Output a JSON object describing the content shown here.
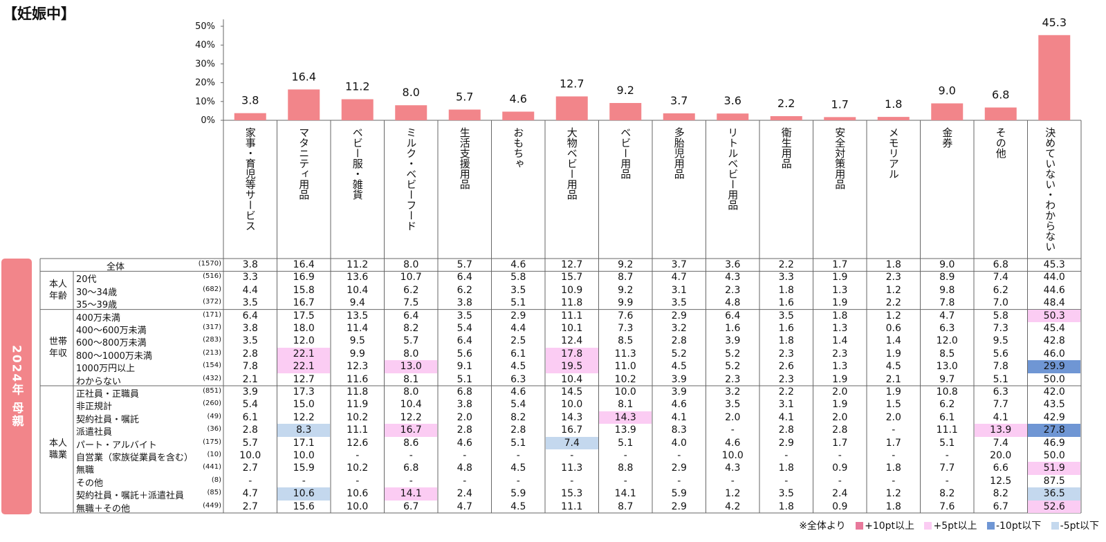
{
  "title": "【妊娠中】",
  "side_label": "2024年 母親",
  "chart_data": {
    "type": "bar",
    "categories": [
      "家事・育児等サービス",
      "マタニティ用品",
      "ベビー服・雑貨",
      "ミルク・ベビーフード",
      "生活支援用品",
      "おもちゃ",
      "大物ベビー用品",
      "ベビー用品",
      "多胎児用品",
      "リトルベビー用品",
      "衛生用品",
      "安全対策用品",
      "メモリアル",
      "金券",
      "その他",
      "決めていない・わからない"
    ],
    "values": [
      3.8,
      16.4,
      11.2,
      8.0,
      5.7,
      4.6,
      12.7,
      9.2,
      3.7,
      3.6,
      2.2,
      1.7,
      1.8,
      9.0,
      6.8,
      45.3
    ],
    "yticks": [
      "0%",
      "10%",
      "20%",
      "30%",
      "40%",
      "50%"
    ],
    "ylim": [
      0,
      50
    ],
    "bar_color": "#f2858a"
  },
  "groups": [
    {
      "label": "本人\n年齢",
      "start": 1,
      "end": 3
    },
    {
      "label": "世帯\n年収",
      "start": 4,
      "end": 9
    },
    {
      "label": "本人\n職業",
      "start": 10,
      "end": 19
    }
  ],
  "rows": [
    {
      "label": "全体",
      "n": "(1570)",
      "v": [
        "3.8",
        "16.4",
        "11.2",
        "8.0",
        "5.7",
        "4.6",
        "12.7",
        "9.2",
        "3.7",
        "3.6",
        "2.2",
        "1.7",
        "1.8",
        "9.0",
        "6.8",
        "45.3"
      ]
    },
    {
      "label": "20代",
      "n": "(516)",
      "v": [
        "3.3",
        "16.9",
        "13.6",
        "10.7",
        "6.4",
        "5.8",
        "15.7",
        "8.7",
        "4.7",
        "4.3",
        "3.3",
        "1.9",
        "2.3",
        "8.9",
        "7.4",
        "44.0"
      ]
    },
    {
      "label": "30～34歳",
      "n": "(682)",
      "v": [
        "4.4",
        "15.8",
        "10.4",
        "6.2",
        "6.2",
        "3.5",
        "10.9",
        "9.2",
        "3.1",
        "2.3",
        "1.8",
        "1.3",
        "1.2",
        "9.8",
        "6.2",
        "44.6"
      ]
    },
    {
      "label": "35～39歳",
      "n": "(372)",
      "v": [
        "3.5",
        "16.7",
        "9.4",
        "7.5",
        "3.8",
        "5.1",
        "11.8",
        "9.9",
        "3.5",
        "4.8",
        "1.6",
        "1.9",
        "2.2",
        "7.8",
        "7.0",
        "48.4"
      ]
    },
    {
      "label": "400万未満",
      "n": "(171)",
      "v": [
        "6.4",
        "17.5",
        "13.5",
        "6.4",
        "3.5",
        "2.9",
        "11.1",
        "7.6",
        "2.9",
        "6.4",
        "3.5",
        "1.8",
        "1.2",
        "4.7",
        "5.8",
        "50.3"
      ],
      "hl": {
        "15": "p5"
      }
    },
    {
      "label": "400～600万未満",
      "n": "(317)",
      "v": [
        "3.8",
        "18.0",
        "11.4",
        "8.2",
        "5.4",
        "4.4",
        "10.1",
        "7.3",
        "3.2",
        "1.6",
        "1.6",
        "1.3",
        "0.6",
        "6.3",
        "7.3",
        "45.4"
      ]
    },
    {
      "label": "600～800万未満",
      "n": "(283)",
      "v": [
        "3.5",
        "12.0",
        "9.5",
        "5.7",
        "6.4",
        "2.5",
        "12.4",
        "8.5",
        "2.8",
        "3.9",
        "1.8",
        "1.4",
        "1.4",
        "12.0",
        "9.5",
        "42.8"
      ]
    },
    {
      "label": "800～1000万未満",
      "n": "(213)",
      "v": [
        "2.8",
        "22.1",
        "9.9",
        "8.0",
        "5.6",
        "6.1",
        "17.8",
        "11.3",
        "5.2",
        "5.2",
        "2.3",
        "2.3",
        "1.9",
        "8.5",
        "5.6",
        "46.0"
      ],
      "hl": {
        "1": "p5",
        "6": "p5"
      }
    },
    {
      "label": "1000万円以上",
      "n": "(154)",
      "v": [
        "7.8",
        "22.1",
        "12.3",
        "13.0",
        "9.1",
        "4.5",
        "19.5",
        "11.0",
        "4.5",
        "5.2",
        "2.6",
        "1.3",
        "4.5",
        "13.0",
        "7.8",
        "29.9"
      ],
      "hl": {
        "1": "p5",
        "3": "p5",
        "6": "p5",
        "15": "m10"
      }
    },
    {
      "label": "わからない",
      "n": "(432)",
      "v": [
        "2.1",
        "12.7",
        "11.6",
        "8.1",
        "5.1",
        "6.3",
        "10.4",
        "10.2",
        "3.9",
        "2.3",
        "2.3",
        "1.9",
        "2.1",
        "9.7",
        "5.1",
        "50.0"
      ]
    },
    {
      "label": "正社員・正職員",
      "n": "(851)",
      "v": [
        "3.9",
        "17.3",
        "11.8",
        "8.0",
        "6.8",
        "4.6",
        "14.5",
        "10.0",
        "3.9",
        "3.2",
        "2.2",
        "2.0",
        "1.9",
        "10.8",
        "6.3",
        "42.0"
      ]
    },
    {
      "label": "非正規計",
      "n": "(260)",
      "v": [
        "5.4",
        "15.0",
        "11.9",
        "10.4",
        "3.8",
        "5.4",
        "10.0",
        "8.1",
        "4.6",
        "3.5",
        "3.1",
        "1.9",
        "1.5",
        "6.2",
        "7.7",
        "43.5"
      ]
    },
    {
      "label": "契約社員・嘱託",
      "n": "(49)",
      "v": [
        "6.1",
        "12.2",
        "10.2",
        "12.2",
        "2.0",
        "8.2",
        "14.3",
        "14.3",
        "4.1",
        "2.0",
        "4.1",
        "2.0",
        "2.0",
        "6.1",
        "4.1",
        "42.9"
      ],
      "hl": {
        "7": "p5"
      }
    },
    {
      "label": "派遣社員",
      "n": "(36)",
      "v": [
        "2.8",
        "8.3",
        "11.1",
        "16.7",
        "2.8",
        "2.8",
        "16.7",
        "13.9",
        "8.3",
        "-",
        "2.8",
        "2.8",
        "-",
        "11.1",
        "13.9",
        "27.8"
      ],
      "hl": {
        "1": "m5",
        "3": "p5",
        "14": "p5",
        "15": "m10"
      }
    },
    {
      "label": "パート・アルバイト",
      "n": "(175)",
      "v": [
        "5.7",
        "17.1",
        "12.6",
        "8.6",
        "4.6",
        "5.1",
        "7.4",
        "5.1",
        "4.0",
        "4.6",
        "2.9",
        "1.7",
        "1.7",
        "5.1",
        "7.4",
        "46.9"
      ],
      "hl": {
        "6": "m5"
      }
    },
    {
      "label": "自営業（家族従業員を含む）",
      "n": "(10)",
      "v": [
        "10.0",
        "10.0",
        "-",
        "-",
        "-",
        "-",
        "-",
        "-",
        "-",
        "10.0",
        "-",
        "-",
        "-",
        "-",
        "20.0",
        "50.0"
      ]
    },
    {
      "label": "無職",
      "n": "(441)",
      "v": [
        "2.7",
        "15.9",
        "10.2",
        "6.8",
        "4.8",
        "4.5",
        "11.3",
        "8.8",
        "2.9",
        "4.3",
        "1.8",
        "0.9",
        "1.8",
        "7.7",
        "6.6",
        "51.9"
      ],
      "hl": {
        "15": "p5"
      }
    },
    {
      "label": "その他",
      "n": "(8)",
      "v": [
        "-",
        "-",
        "-",
        "-",
        "-",
        "-",
        "-",
        "-",
        "-",
        "-",
        "-",
        "-",
        "-",
        "-",
        "12.5",
        "87.5"
      ]
    },
    {
      "label": "契約社員・嘱託＋派遣社員",
      "n": "(85)",
      "v": [
        "4.7",
        "10.6",
        "10.6",
        "14.1",
        "2.4",
        "5.9",
        "15.3",
        "14.1",
        "5.9",
        "1.2",
        "3.5",
        "2.4",
        "1.2",
        "8.2",
        "8.2",
        "36.5"
      ],
      "hl": {
        "1": "m5",
        "3": "p5",
        "15": "m5"
      }
    },
    {
      "label": "無職＋その他",
      "n": "(449)",
      "v": [
        "2.7",
        "15.6",
        "10.0",
        "6.7",
        "4.7",
        "4.5",
        "11.1",
        "8.7",
        "2.9",
        "4.2",
        "1.8",
        "0.9",
        "1.8",
        "7.6",
        "6.7",
        "52.6"
      ],
      "hl": {
        "15": "p5"
      }
    }
  ],
  "legend": {
    "prefix": "※全体より",
    "items": [
      {
        "label": "+10pt以上",
        "color": "#e8799b"
      },
      {
        "label": "+5pt以上",
        "color": "#fbccf3"
      },
      {
        "label": "-10pt以下",
        "color": "#6f96d4"
      },
      {
        "label": "-5pt以下",
        "color": "#c4d8ee"
      }
    ]
  },
  "colors": {
    "p5": "#fbccf3",
    "m10": "#6f96d4",
    "m5": "#c4d8ee",
    "grid": "#555555"
  }
}
